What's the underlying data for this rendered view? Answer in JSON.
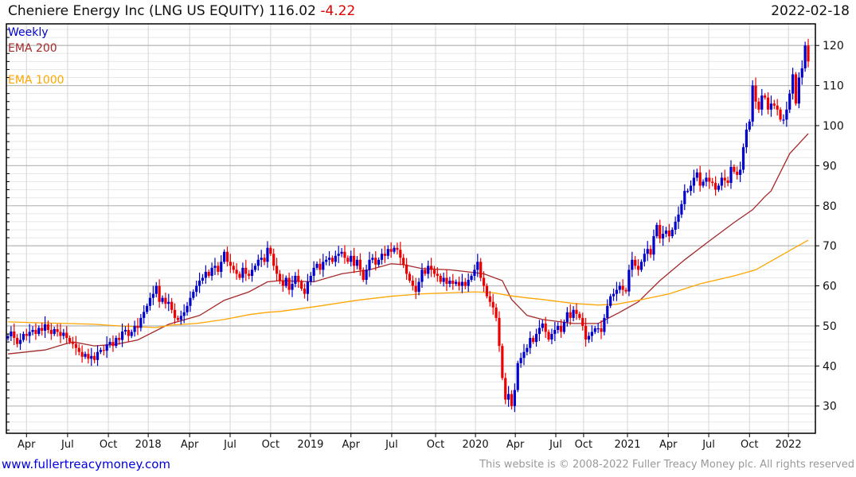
{
  "header": {
    "name": "Cheniere Energy Inc (LNG US EQUITY)",
    "last": "116.02",
    "change": "-4.22",
    "date": "2022-02-18"
  },
  "footer": {
    "link": "www.fullertreacymoney.com",
    "copyright": "This website is © 2008-2022 Fuller Treacy Money plc. All rights reserved"
  },
  "chart_data": {
    "type": "candlestick",
    "title": "Cheniere Energy Inc (LNG US EQUITY)",
    "frequency": "Weekly",
    "ylim": [
      23.2,
      125.4
    ],
    "yticks": [
      30,
      40,
      50,
      60,
      70,
      80,
      90,
      100,
      110,
      120
    ],
    "y_minor_step": 2,
    "grid": true,
    "xlim": [
      0,
      259
    ],
    "xticks": [
      {
        "label": "Apr",
        "at": 6
      },
      {
        "label": "Jul",
        "at": 19.3
      },
      {
        "label": "Oct",
        "at": 32.5
      },
      {
        "label": "2018",
        "at": 45.4
      },
      {
        "label": "Apr",
        "at": 58.8
      },
      {
        "label": "Jul",
        "at": 71.9
      },
      {
        "label": "Oct",
        "at": 85
      },
      {
        "label": "2019",
        "at": 97.9
      },
      {
        "label": "Apr",
        "at": 111
      },
      {
        "label": "Jul",
        "at": 124.2
      },
      {
        "label": "Oct",
        "at": 138.4
      },
      {
        "label": "2020",
        "at": 151.3
      },
      {
        "label": "Apr",
        "at": 164.2
      },
      {
        "label": "Jul",
        "at": 177.3
      },
      {
        "label": "Oct",
        "at": 186.3
      },
      {
        "label": "2021",
        "at": 200.5
      },
      {
        "label": "Apr",
        "at": 213.7
      },
      {
        "label": "Jul",
        "at": 226.8
      },
      {
        "label": "Oct",
        "at": 240
      },
      {
        "label": "2022",
        "at": 252.6
      }
    ],
    "up_color": "#0000cc",
    "down_color": "#ee0000",
    "closes": [
      47.4,
      48.6,
      47,
      45.5,
      46.5,
      48,
      47.5,
      48.5,
      49,
      48,
      49.5,
      48.8,
      50.4,
      49,
      48,
      49.2,
      48.5,
      47.5,
      48.3,
      47,
      46,
      45.5,
      44.5,
      43.5,
      42.3,
      43,
      41.8,
      42.5,
      41.5,
      43.5,
      44,
      43.8,
      45.4,
      46,
      45,
      47,
      46.5,
      48.6,
      49,
      47.5,
      48.5,
      50,
      49.5,
      52,
      53.5,
      55,
      57,
      58,
      60,
      56,
      57,
      55.5,
      56,
      54,
      52,
      51.5,
      52.5,
      53.4,
      55,
      57,
      58.5,
      60,
      61.3,
      62,
      63.5,
      62.5,
      64.5,
      65,
      63.5,
      66,
      68.5,
      66,
      65,
      64,
      63,
      62,
      64.5,
      63,
      62.5,
      64,
      65,
      66.5,
      67,
      66,
      69.5,
      68,
      65,
      63,
      61.3,
      60,
      62,
      59,
      60.5,
      62.5,
      61,
      59.3,
      58,
      61,
      62.5,
      64.5,
      65.5,
      64,
      66,
      66.5,
      67,
      66,
      67.5,
      68,
      68.5,
      67,
      66,
      67.5,
      65,
      66.5,
      64,
      61.5,
      64,
      66.5,
      67,
      65.3,
      66.5,
      68,
      67.5,
      69.2,
      68.5,
      69.5,
      69,
      67,
      65.3,
      63,
      61.3,
      60,
      58.5,
      61,
      64,
      63,
      65,
      64,
      63,
      62.5,
      61,
      62,
      60.5,
      61.3,
      60.5,
      61,
      60,
      61,
      60,
      61.5,
      62.5,
      64,
      66,
      62,
      60,
      57.4,
      56,
      54.6,
      52,
      45,
      37,
      31.6,
      33,
      30,
      34,
      40.7,
      42,
      43.5,
      44.5,
      47,
      46,
      48,
      49.5,
      50.6,
      48.5,
      46.6,
      48,
      49,
      50,
      48.5,
      51,
      53.4,
      52,
      54,
      53,
      52,
      50,
      46.6,
      47.5,
      48.5,
      49.4,
      49.4,
      48.5,
      52,
      55,
      57.4,
      58,
      59,
      60,
      59,
      58.6,
      64,
      66.5,
      65,
      64,
      66,
      68,
      69.2,
      67.8,
      72.4,
      75.2,
      71.8,
      73,
      73.8,
      72.4,
      74,
      76,
      77.8,
      80.4,
      83.7,
      83.7,
      85,
      87,
      88.3,
      85,
      86,
      87,
      86,
      85.7,
      84,
      85,
      87,
      86.3,
      85.7,
      89.7,
      88.5,
      87.7,
      89,
      94.6,
      99,
      101,
      110,
      106,
      104,
      107.5,
      107,
      104,
      105.5,
      105,
      104,
      101.5,
      101.5,
      104,
      108,
      112.8,
      105.5,
      112,
      114.3,
      120,
      116.02
    ],
    "series": [
      {
        "name": "Weekly",
        "color": "#0000cc"
      },
      {
        "name": "EMA 200",
        "color": "#a52a2a",
        "points": [
          [
            0,
            43
          ],
          [
            12,
            44
          ],
          [
            19,
            45.6
          ],
          [
            21,
            46
          ],
          [
            28,
            45
          ],
          [
            35,
            45.4
          ],
          [
            42,
            46.5
          ],
          [
            52,
            50.4
          ],
          [
            62,
            52.6
          ],
          [
            70,
            56.4
          ],
          [
            78,
            58.5
          ],
          [
            84,
            61
          ],
          [
            88,
            61.3
          ],
          [
            99,
            61
          ],
          [
            108,
            63
          ],
          [
            117,
            64
          ],
          [
            124,
            65.5
          ],
          [
            128,
            65.3
          ],
          [
            134,
            64.3
          ],
          [
            143,
            64
          ],
          [
            151,
            63.3
          ],
          [
            154,
            63
          ],
          [
            160,
            61.3
          ],
          [
            163,
            56.6
          ],
          [
            168,
            52.6
          ],
          [
            173,
            51.6
          ],
          [
            183,
            50.6
          ],
          [
            191,
            50.6
          ],
          [
            198,
            53.4
          ],
          [
            204,
            56
          ],
          [
            211,
            61.3
          ],
          [
            219,
            66.5
          ],
          [
            227,
            71.2
          ],
          [
            235,
            75.8
          ],
          [
            241,
            79
          ],
          [
            245,
            82.3
          ],
          [
            247,
            83.7
          ],
          [
            253,
            93
          ],
          [
            259,
            98
          ]
        ]
      },
      {
        "name": "EMA 1000",
        "color": "#ffa500",
        "points": [
          [
            0,
            51
          ],
          [
            9,
            50.8
          ],
          [
            19,
            50.6
          ],
          [
            28,
            50.4
          ],
          [
            36,
            50
          ],
          [
            48,
            49.6
          ],
          [
            53,
            50.2
          ],
          [
            61,
            50.6
          ],
          [
            70,
            51.6
          ],
          [
            78,
            52.8
          ],
          [
            84,
            53.4
          ],
          [
            88,
            53.6
          ],
          [
            101,
            55
          ],
          [
            113,
            56.4
          ],
          [
            124,
            57.4
          ],
          [
            134,
            58
          ],
          [
            151,
            58.5
          ],
          [
            157,
            58.3
          ],
          [
            162,
            57.6
          ],
          [
            168,
            57
          ],
          [
            173,
            56.6
          ],
          [
            183,
            55.6
          ],
          [
            191,
            55.2
          ],
          [
            197,
            55.4
          ],
          [
            204,
            56.4
          ],
          [
            214,
            58
          ],
          [
            224,
            60.5
          ],
          [
            235,
            62.5
          ],
          [
            242,
            64
          ],
          [
            253,
            68.8
          ],
          [
            259,
            71.4
          ]
        ]
      }
    ]
  }
}
